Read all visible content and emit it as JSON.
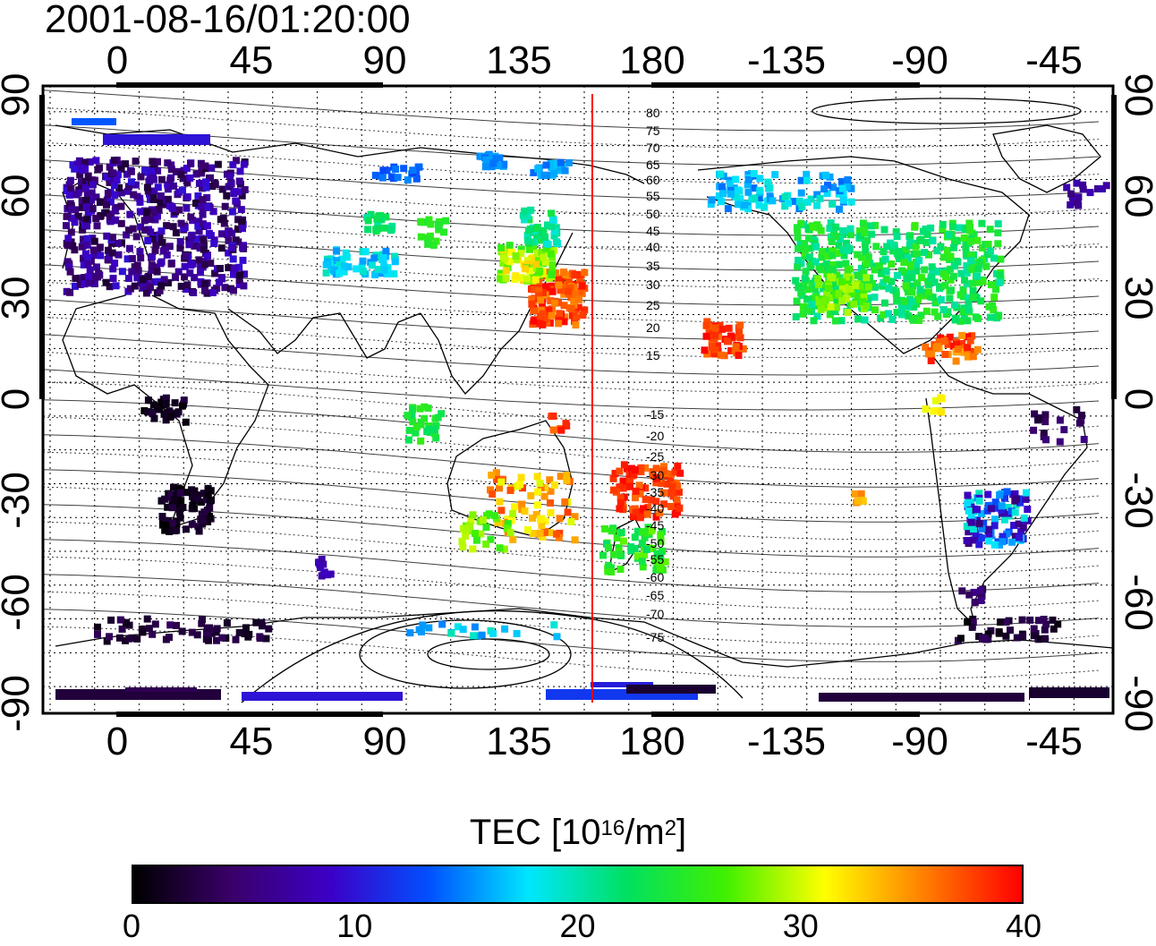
{
  "title": "2001-08-16/01:20:00",
  "map": {
    "lon_ticks_top": [
      "0",
      "45",
      "90",
      "135",
      "180",
      "-135",
      "-90",
      "-45"
    ],
    "lon_ticks_bottom": [
      "0",
      "45",
      "90",
      "135",
      "180",
      "-135",
      "-90",
      "-45"
    ],
    "lat_ticks_left": [
      "90",
      "60",
      "30",
      "0",
      "-30",
      "-60",
      "-90"
    ],
    "lat_ticks_right": [
      "90",
      "60",
      "30",
      "0",
      "-30",
      "-60",
      "-90"
    ],
    "dip_latitude_labels_north": [
      "80",
      "75",
      "70",
      "65",
      "60",
      "55",
      "50",
      "45",
      "40",
      "35",
      "30",
      "25",
      "20",
      "15"
    ],
    "dip_latitude_labels_south": [
      "-15",
      "-20",
      "-25",
      "-30",
      "-35",
      "-40",
      "-45",
      "-50",
      "-55",
      "-60",
      "-65",
      "-70",
      "-75"
    ],
    "terminator_line_color": "#ff0000"
  },
  "colorbar": {
    "label_main": "TEC  [10",
    "label_exp1": "16",
    "label_mid": "/m",
    "label_exp2": "2",
    "label_end": "]",
    "range": [
      0,
      40
    ],
    "ticks": [
      "0",
      "10",
      "20",
      "30",
      "40"
    ],
    "colors": [
      "#000000",
      "#3a006a",
      "#3c00c8",
      "#0050ff",
      "#00e6ff",
      "#00e060",
      "#40f000",
      "#ffff00",
      "#ff8000",
      "#ff0000"
    ]
  }
}
